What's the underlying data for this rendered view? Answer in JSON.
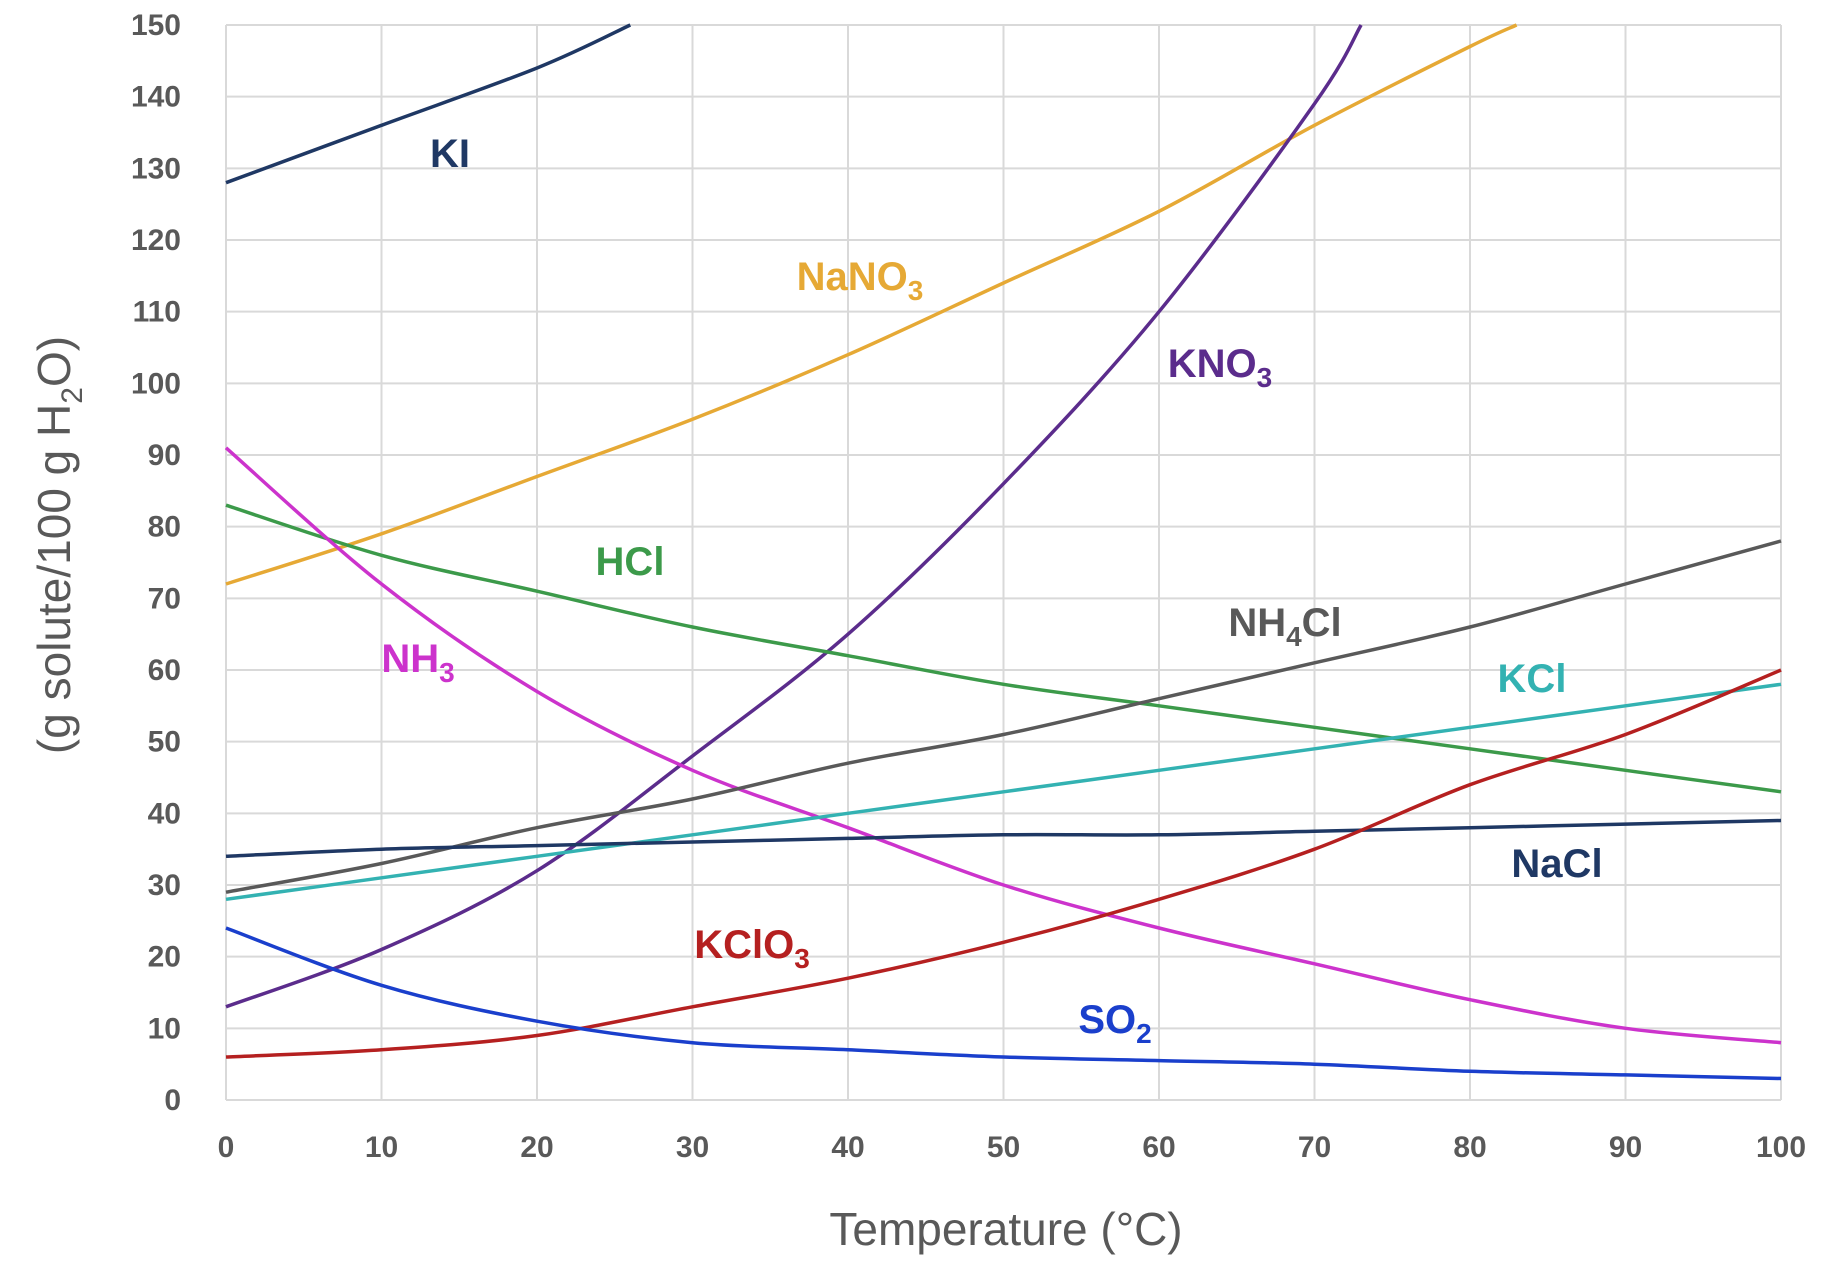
{
  "chart_data": {
    "type": "line",
    "title": "",
    "xlabel": "Temperature (°C)",
    "ylabel": {
      "main": "(g solute/100 g H",
      "sub": "2",
      "tail": "O)"
    },
    "xlim": [
      0,
      100
    ],
    "ylim": [
      0,
      150
    ],
    "x_ticks": [
      "0",
      "10",
      "20",
      "30",
      "40",
      "50",
      "60",
      "70",
      "80",
      "90",
      "100"
    ],
    "y_ticks": [
      "0",
      "10",
      "20",
      "30",
      "40",
      "50",
      "60",
      "70",
      "80",
      "90",
      "100",
      "110",
      "120",
      "130",
      "140",
      "150"
    ],
    "grid": true,
    "legend": "inline labels",
    "x": [
      0,
      10,
      20,
      30,
      40,
      50,
      60,
      70,
      80,
      90,
      100
    ],
    "series": [
      {
        "name": "KI",
        "label_main": "KI",
        "label_sub": "",
        "label_tail": "",
        "color": "#1f3864",
        "x": [
          0,
          10,
          20,
          26
        ],
        "values": [
          128,
          136,
          144,
          150
        ]
      },
      {
        "name": "NaNO3",
        "label_main": "NaNO",
        "label_sub": "3",
        "label_tail": "",
        "color": "#e6a935",
        "x": [
          0,
          10,
          20,
          30,
          40,
          50,
          60,
          70,
          80,
          83
        ],
        "values": [
          72,
          79,
          87,
          95,
          104,
          114,
          124,
          136,
          147,
          150
        ]
      },
      {
        "name": "KNO3",
        "label_main": "KNO",
        "label_sub": "3",
        "label_tail": "",
        "color": "#5b2c8c",
        "x": [
          0,
          10,
          20,
          30,
          40,
          50,
          60,
          70,
          73
        ],
        "values": [
          13,
          21,
          32,
          48,
          65,
          86,
          110,
          139,
          150
        ]
      },
      {
        "name": "HCl",
        "label_main": "HCl",
        "label_sub": "",
        "label_tail": "",
        "color": "#3c9a4a",
        "x": [
          0,
          10,
          20,
          30,
          40,
          50,
          60,
          70,
          80,
          90,
          100
        ],
        "values": [
          83,
          76,
          71,
          66,
          62,
          58,
          55,
          52,
          49,
          46,
          43
        ]
      },
      {
        "name": "NH3",
        "label_main": "NH",
        "label_sub": "3",
        "label_tail": "",
        "color": "#cc33cc",
        "x": [
          0,
          10,
          20,
          30,
          40,
          50,
          60,
          70,
          80,
          90,
          100
        ],
        "values": [
          91,
          72,
          57,
          46,
          38,
          30,
          24,
          19,
          14,
          10,
          8
        ]
      },
      {
        "name": "NH4Cl",
        "label_main": "NH",
        "label_sub": "4",
        "label_tail": "Cl",
        "color": "#595959",
        "x": [
          0,
          10,
          20,
          30,
          40,
          50,
          60,
          70,
          80,
          90,
          100
        ],
        "values": [
          29,
          33,
          38,
          42,
          47,
          51,
          56,
          61,
          66,
          72,
          78
        ]
      },
      {
        "name": "KCl",
        "label_main": "KCl",
        "label_sub": "",
        "label_tail": "",
        "color": "#33b2b2",
        "x": [
          0,
          10,
          20,
          30,
          40,
          50,
          60,
          70,
          80,
          90,
          100
        ],
        "values": [
          28,
          31,
          34,
          37,
          40,
          43,
          46,
          49,
          52,
          55,
          58
        ]
      },
      {
        "name": "NaCl",
        "label_main": "NaCl",
        "label_sub": "",
        "label_tail": "",
        "color": "#1f3864",
        "x": [
          0,
          10,
          20,
          30,
          40,
          50,
          60,
          70,
          80,
          90,
          100
        ],
        "values": [
          34,
          35,
          35.5,
          36,
          36.5,
          37,
          37,
          37.5,
          38,
          38.5,
          39
        ]
      },
      {
        "name": "KClO3",
        "label_main": "KClO",
        "label_sub": "3",
        "label_tail": "",
        "color": "#b52020",
        "x": [
          0,
          10,
          20,
          30,
          40,
          50,
          60,
          70,
          80,
          90,
          100
        ],
        "values": [
          6,
          7,
          9,
          13,
          17,
          22,
          28,
          35,
          44,
          51,
          60
        ]
      },
      {
        "name": "SO2",
        "label_main": "SO",
        "label_sub": "2",
        "label_tail": "",
        "color": "#1a3fcc",
        "x": [
          0,
          10,
          20,
          30,
          40,
          50,
          60,
          70,
          80,
          90,
          100
        ],
        "values": [
          24,
          16,
          11,
          8,
          7,
          6,
          5.5,
          5,
          4,
          3.5,
          3
        ]
      }
    ]
  }
}
